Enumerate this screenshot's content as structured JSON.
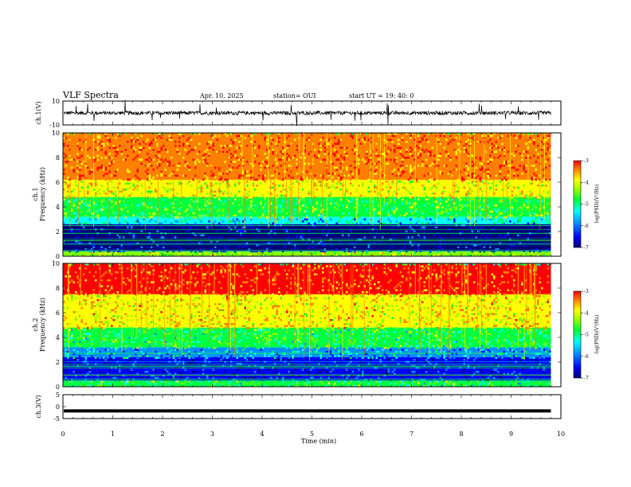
{
  "header": {
    "title": "VLF Spectra",
    "date": "Apr. 10, 2025",
    "station": "station= OUI",
    "start": "start  UT =   19: 40: 0"
  },
  "colors": {
    "spectrum": [
      "#00007a",
      "#0000ff",
      "#0090ff",
      "#00ffff",
      "#00ff40",
      "#80ff00",
      "#ffff00",
      "#ff8000",
      "#ff0000"
    ]
  },
  "chart_data": [
    {
      "id": "ch1",
      "type": "line",
      "ylabel": "ch.1(V)",
      "ylim": [
        -10,
        10
      ],
      "yticks": [
        10,
        -10
      ],
      "xlim": [
        0,
        10
      ],
      "waveform": "noisy trace near baseline with sporadic spikes",
      "baseline": 0
    },
    {
      "id": "ch1_spectrogram",
      "type": "heatmap",
      "ylabel": "ch.1\nFrequency (kHz)",
      "ylabel_line1": "ch.1",
      "ylabel_line2": "Frequency (kHz)",
      "ylim": [
        0,
        10
      ],
      "yticks": [
        0,
        2,
        4,
        6,
        8,
        10
      ],
      "xlim": [
        0,
        10
      ],
      "data_extent_min": 9.8,
      "colorbar": {
        "label": "log(PSD)(V²/Hz)",
        "min": -7,
        "max": -3,
        "ticks": [
          -3,
          -4,
          -5,
          -6,
          -7
        ]
      },
      "bands": [
        {
          "f_low": 0,
          "f_high": 0.4,
          "level": -4.4
        },
        {
          "f_low": 0.4,
          "f_high": 2.6,
          "level": -6.8
        },
        {
          "f_low": 2.6,
          "f_high": 3.2,
          "level": -5.6
        },
        {
          "f_low": 3.2,
          "f_high": 4.8,
          "level": -4.8
        },
        {
          "f_low": 4.8,
          "f_high": 6.2,
          "level": -4.1
        },
        {
          "f_low": 6.2,
          "f_high": 10,
          "level": -3.4
        }
      ]
    },
    {
      "id": "ch2_spectrogram",
      "type": "heatmap",
      "ylabel": "ch.2\nFrequency (kHz)",
      "ylabel_line1": "ch.2",
      "ylabel_line2": "Frequency (kHz)",
      "ylim": [
        0,
        10
      ],
      "yticks": [
        0,
        2,
        4,
        6,
        8,
        10
      ],
      "xlim": [
        0,
        10
      ],
      "data_extent_min": 9.8,
      "colorbar": {
        "label": "log(PSD)(V²/Hz)",
        "min": -7,
        "max": -3,
        "ticks": [
          -3,
          -4,
          -5,
          -6,
          -7
        ]
      },
      "bands": [
        {
          "f_low": 0,
          "f_high": 0.5,
          "level": -5.0
        },
        {
          "f_low": 0.5,
          "f_high": 2.4,
          "level": -6.6
        },
        {
          "f_low": 2.4,
          "f_high": 3.2,
          "level": -5.8
        },
        {
          "f_low": 3.2,
          "f_high": 4.8,
          "level": -5.0
        },
        {
          "f_low": 4.8,
          "f_high": 7.5,
          "level": -4.0
        },
        {
          "f_low": 7.5,
          "f_high": 10,
          "level": -3.2
        }
      ]
    },
    {
      "id": "ch3",
      "type": "line",
      "ylabel": "ch.3(V)",
      "ylim": [
        -5,
        5
      ],
      "yticks": [
        5,
        0,
        -5
      ],
      "xlim": [
        0,
        10
      ],
      "constant_value": -1.8,
      "xlabel": "Time (min)",
      "xticks": [
        0,
        1,
        2,
        3,
        4,
        5,
        6,
        7,
        8,
        9,
        10
      ]
    }
  ]
}
